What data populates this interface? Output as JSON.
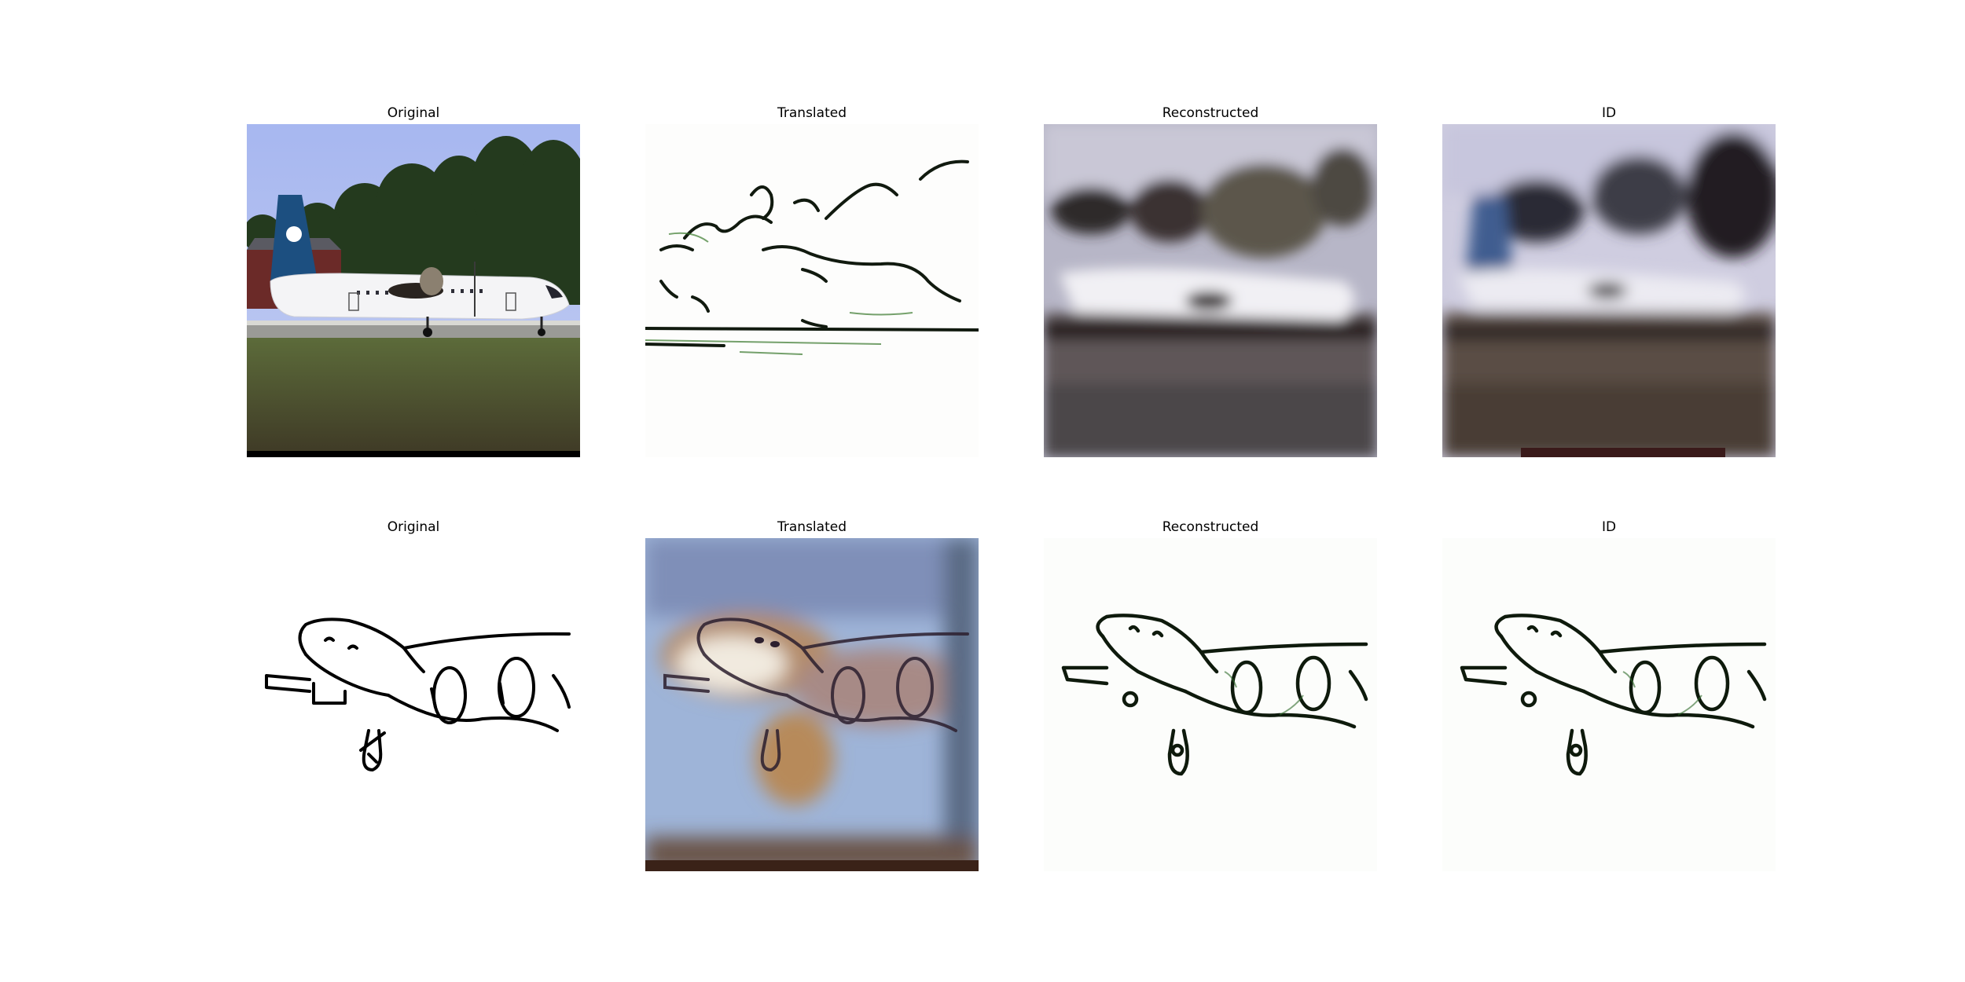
{
  "figure": {
    "rows": [
      {
        "panels": [
          {
            "title": "Original"
          },
          {
            "title": "Translated"
          },
          {
            "title": "Reconstructed"
          },
          {
            "title": "ID"
          }
        ]
      },
      {
        "panels": [
          {
            "title": "Original"
          },
          {
            "title": "Translated"
          },
          {
            "title": "Reconstructed"
          },
          {
            "title": "ID"
          }
        ]
      }
    ]
  }
}
